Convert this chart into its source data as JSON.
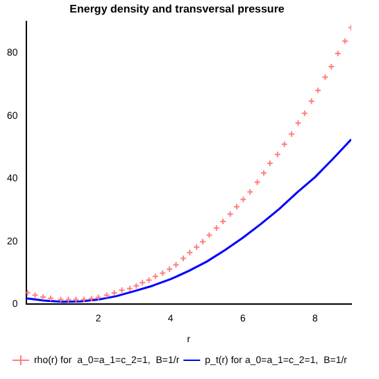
{
  "chart_data": {
    "type": "line",
    "title": "Energy density and transversal pressure",
    "xlabel": "r",
    "xlim": [
      0,
      9
    ],
    "xticks": [
      2,
      4,
      6,
      8
    ],
    "ylim": [
      0,
      90
    ],
    "yticks": [
      0,
      20,
      40,
      60,
      80
    ],
    "grid": false,
    "legend": "bottom",
    "series": [
      {
        "name": "rho(r) for  a_0=a_1=c_2=1,  B=1/r",
        "type": "scatter",
        "marker": "cross",
        "color": "#ff7f7f",
        "x": [
          0.04,
          0.25,
          0.47,
          0.68,
          0.96,
          1.17,
          1.38,
          1.6,
          1.81,
          2.0,
          2.23,
          2.44,
          2.65,
          2.87,
          3.05,
          3.22,
          3.4,
          3.58,
          3.78,
          3.97,
          4.15,
          4.35,
          4.53,
          4.72,
          4.89,
          5.07,
          5.27,
          5.45,
          5.65,
          5.83,
          6.01,
          6.2,
          6.4,
          6.58,
          6.75,
          6.96,
          7.15,
          7.35,
          7.53,
          7.71,
          7.9,
          8.08,
          8.28,
          8.45,
          8.63,
          8.83,
          9.0
        ],
        "values": [
          3.7,
          2.9,
          2.3,
          1.9,
          1.5,
          1.5,
          1.5,
          1.5,
          1.8,
          2.2,
          2.9,
          3.6,
          4.5,
          5,
          5.9,
          6.9,
          7.7,
          8.9,
          9.9,
          11.2,
          12.6,
          14.6,
          16.5,
          18.2,
          19.9,
          22,
          24.3,
          26.4,
          28.7,
          31.1,
          33.4,
          35.8,
          38.9,
          41.8,
          44.9,
          47.7,
          51,
          54.2,
          57.7,
          60.8,
          64.7,
          68.1,
          72.3,
          75.7,
          79.9,
          83.8,
          88.1
        ]
      },
      {
        "name": "p_t(r) for a_0=a_1=c_2=1,  B=1/r",
        "type": "line",
        "marker": "none",
        "line_style": "solid",
        "color": "#0000ff",
        "x": [
          0,
          0.5,
          1,
          1.5,
          2,
          2.5,
          3,
          3.5,
          4,
          4.5,
          5,
          5.5,
          6,
          6.5,
          7,
          7.5,
          8,
          8.5,
          9
        ],
        "values": [
          1.9,
          1.2,
          0.8,
          0.9,
          1.5,
          2.6,
          4.2,
          5.9,
          8,
          10.6,
          13.6,
          17.2,
          21.2,
          25.6,
          30.3,
          35.6,
          40.5,
          46.4,
          52.5
        ]
      }
    ]
  }
}
